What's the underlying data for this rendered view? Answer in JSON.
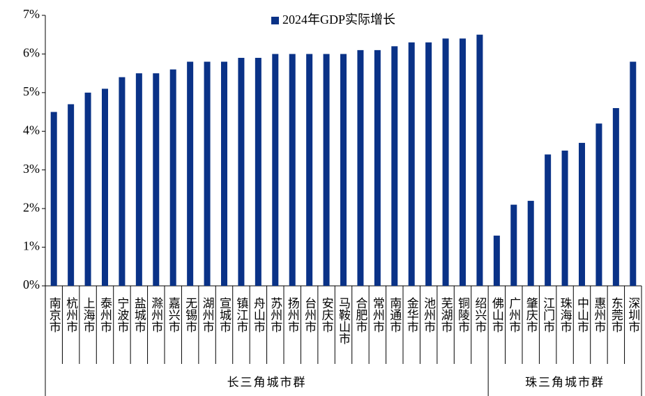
{
  "chart_data": {
    "type": "bar",
    "groups": [
      {
        "name": "长三角城市群",
        "categories": [
          "南京市",
          "杭州市",
          "上海市",
          "泰州市",
          "宁波市",
          "盐城市",
          "滁州市",
          "嘉兴市",
          "无锡市",
          "湖州市",
          "宣城市",
          "镇江市",
          "舟山市",
          "苏州市",
          "扬州市",
          "台州市",
          "安庆市",
          "马鞍山市",
          "合肥市",
          "常州市",
          "南通市",
          "金华市",
          "池州市",
          "芜湖市",
          "铜陵市",
          "绍兴市"
        ]
      },
      {
        "name": "珠三角城市群",
        "categories": [
          "佛山市",
          "广州市",
          "肇庆市",
          "江门市",
          "珠海市",
          "中山市",
          "惠州市",
          "东莞市",
          "深圳市"
        ]
      }
    ],
    "series": [
      {
        "name": "2024年GDP实际增长",
        "color": "#0a3287",
        "values": [
          4.5,
          4.7,
          5.0,
          5.1,
          5.4,
          5.5,
          5.5,
          5.6,
          5.8,
          5.8,
          5.8,
          5.9,
          5.9,
          6.0,
          6.0,
          6.0,
          6.0,
          6.0,
          6.1,
          6.1,
          6.2,
          6.3,
          6.3,
          6.4,
          6.4,
          6.5,
          1.3,
          2.1,
          2.2,
          3.4,
          3.5,
          3.7,
          4.2,
          4.6,
          5.8
        ]
      }
    ],
    "ylim": [
      0,
      7
    ],
    "yticks": [
      {
        "value": 0,
        "label": "0%"
      },
      {
        "value": 1,
        "label": "1%"
      },
      {
        "value": 2,
        "label": "2%"
      },
      {
        "value": 3,
        "label": "3%"
      },
      {
        "value": 4,
        "label": "4%"
      },
      {
        "value": 5,
        "label": "5%"
      },
      {
        "value": 6,
        "label": "6%"
      },
      {
        "value": 7,
        "label": "7%"
      }
    ],
    "legend": "top"
  }
}
